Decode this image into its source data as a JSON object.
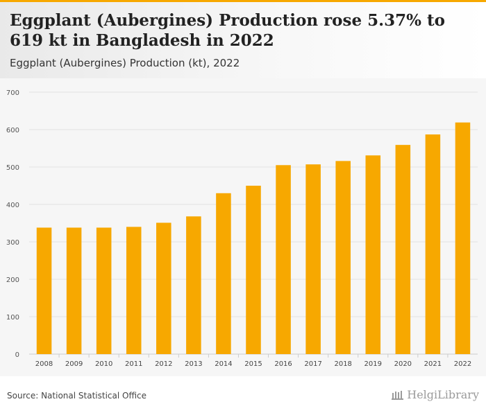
{
  "header": {
    "title": "Eggplant (Aubergines) Production rose 5.37% to 619 kt in Bangladesh in 2022",
    "subtitle": "Eggplant (Aubergines) Production (kt), 2022"
  },
  "footer": {
    "source": "Source: National Statistical Office",
    "logo_text": "HelgiLibrary"
  },
  "colors": {
    "bar": "#f7a800",
    "accent": "#f7a800",
    "grid": "#e2e2e2"
  },
  "chart_data": {
    "type": "bar",
    "categories": [
      "2008",
      "2009",
      "2010",
      "2011",
      "2012",
      "2013",
      "2014",
      "2015",
      "2016",
      "2017",
      "2018",
      "2019",
      "2020",
      "2021",
      "2022"
    ],
    "values": [
      338,
      338,
      338,
      340,
      351,
      368,
      430,
      450,
      505,
      507,
      516,
      531,
      559,
      587,
      619
    ],
    "ylim": [
      0,
      700
    ],
    "yticks": [
      0,
      100,
      200,
      300,
      400,
      500,
      600,
      700
    ],
    "grid": true,
    "xlabel": "",
    "ylabel": ""
  }
}
